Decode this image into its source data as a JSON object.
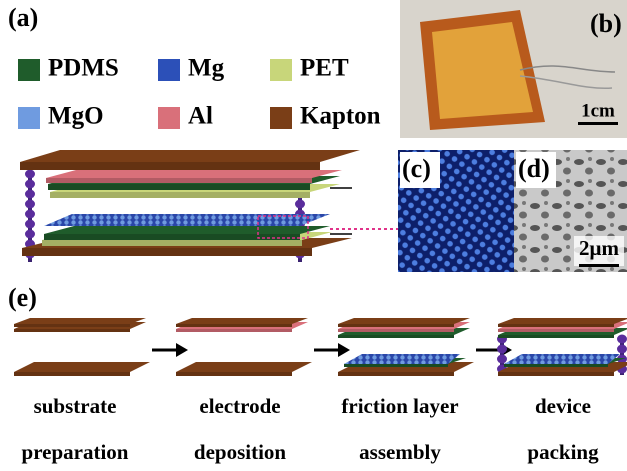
{
  "panel_a": {
    "label": "(a)",
    "legend": [
      {
        "name": "PDMS",
        "color": "#1f5c2b"
      },
      {
        "name": "Mg",
        "color": "#2c50b8"
      },
      {
        "name": "PET",
        "color": "#c8d67a"
      },
      {
        "name": "MgO",
        "color": "#6f9be0"
      },
      {
        "name": "Al",
        "color": "#d9707a"
      },
      {
        "name": "Kapton",
        "color": "#7a3e17"
      }
    ]
  },
  "panel_b": {
    "label": "(b)",
    "scale_bar": "1cm"
  },
  "panel_c": {
    "label": "(c)"
  },
  "panel_d": {
    "label": "(d)",
    "scale_bar": "2μm"
  },
  "panel_e": {
    "label": "(e)",
    "steps": [
      {
        "lines": [
          "substrate",
          "preparation"
        ]
      },
      {
        "lines": [
          "electrode",
          "deposition"
        ]
      },
      {
        "lines": [
          "friction layer",
          "assembly"
        ]
      },
      {
        "lines": [
          "device",
          "packing"
        ]
      }
    ]
  }
}
